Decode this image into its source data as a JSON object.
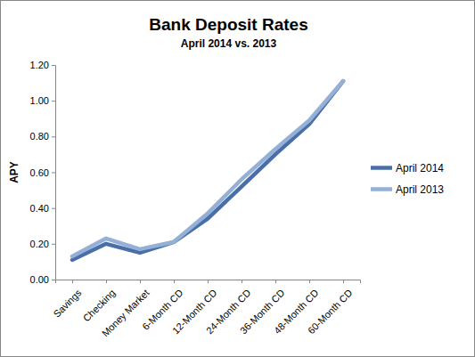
{
  "chart_data": {
    "type": "line",
    "title": "Bank Deposit Rates",
    "subtitle": "April 2014 vs. 2013",
    "y_label": "APY",
    "categories": [
      "Savings",
      "Checking",
      "Money Market",
      "6-Month CD",
      "12-Month CD",
      "24-Month CD",
      "36-Month CD",
      "48-Month CD",
      "60-Month CD"
    ],
    "series": [
      {
        "name": "April 2014",
        "color": "#4a6fa8",
        "values": [
          0.11,
          0.2,
          0.15,
          0.21,
          0.34,
          0.52,
          0.7,
          0.87,
          1.11
        ]
      },
      {
        "name": "April 2013",
        "color": "#95b0d6",
        "values": [
          0.13,
          0.23,
          0.17,
          0.21,
          0.37,
          0.56,
          0.73,
          0.89,
          1.11
        ]
      }
    ],
    "ylim": [
      0,
      1.2
    ],
    "yticks": [
      {
        "value": 0,
        "label": "0.00"
      },
      {
        "value": 0.2,
        "label": "0.20"
      },
      {
        "value": 0.4,
        "label": "0.40"
      },
      {
        "value": 0.6,
        "label": "0.60"
      },
      {
        "value": 0.8,
        "label": "0.80"
      },
      {
        "value": 1.0,
        "label": "1.00"
      },
      {
        "value": 1.2,
        "label": "1.20"
      }
    ],
    "grid": false,
    "legend": "right"
  }
}
